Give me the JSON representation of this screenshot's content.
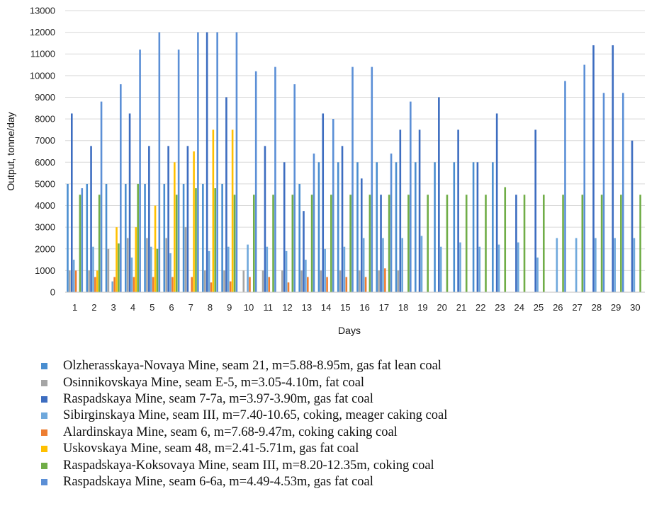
{
  "chart_data": {
    "type": "bar",
    "title": "",
    "xlabel": "Days",
    "ylabel": "Output, tonne/day",
    "ylim": [
      0,
      13000
    ],
    "yticks": [
      0,
      1000,
      2000,
      3000,
      4000,
      5000,
      6000,
      7000,
      8000,
      9000,
      10000,
      11000,
      12000,
      13000
    ],
    "grid": true,
    "legend_position": "bottom",
    "categories": [
      "1",
      "2",
      "3",
      "4",
      "5",
      "6",
      "7",
      "8",
      "9",
      "10",
      "11",
      "12",
      "13",
      "14",
      "15",
      "16",
      "17",
      "18",
      "19",
      "20",
      "21",
      "22",
      "23",
      "24",
      "25",
      "26",
      "27",
      "28",
      "29",
      "30"
    ],
    "series": [
      {
        "name": "Olzherasskaya-Novaya Mine, seam 21, m=5.88-8.95m, gas fat lean coal",
        "color": "#4a8ed0",
        "values": [
          5000,
          5000,
          5000,
          5000,
          5000,
          5000,
          5000,
          5000,
          5000,
          0,
          0,
          0,
          5000,
          6000,
          6000,
          6000,
          6000,
          6000,
          6000,
          6000,
          6000,
          6000,
          6000,
          0,
          0,
          0,
          0,
          0,
          0,
          0
        ]
      },
      {
        "name": "Osinnikovskaya Mine, seam E-5, m=3.05-4.10m, fat coal",
        "color": "#a5a5a5",
        "values": [
          1000,
          1000,
          2000,
          2500,
          2500,
          2500,
          3000,
          1000,
          1000,
          1000,
          1000,
          1000,
          1000,
          1000,
          1000,
          1000,
          1000,
          1000,
          0,
          0,
          0,
          0,
          0,
          0,
          0,
          0,
          0,
          0,
          0,
          0
        ]
      },
      {
        "name": "Raspadskaya Mine, seam 7-7a, m=3.97-3.90m, gas fat coal",
        "color": "#3d6dc0",
        "values": [
          8250,
          6750,
          0,
          8250,
          6750,
          6750,
          6750,
          12000,
          9000,
          0,
          6750,
          6000,
          3750,
          8250,
          6750,
          5250,
          4500,
          7500,
          7500,
          9000,
          7500,
          6000,
          8250,
          4500,
          7500,
          0,
          0,
          11400,
          11400,
          7000
        ]
      },
      {
        "name": "Sibirginskaya Mine, seam III, m=7.40-10.65, coking, meager caking coal",
        "color": "#6fa8dc",
        "values": [
          1500,
          2100,
          500,
          1600,
          2100,
          1800,
          0,
          1900,
          2100,
          2200,
          2100,
          1900,
          1500,
          2000,
          2100,
          2500,
          2500,
          2500,
          2600,
          2100,
          2300,
          2100,
          2200,
          2300,
          1600,
          2500,
          2500,
          2500,
          2500,
          2500
        ]
      },
      {
        "name": "Alardinskaya Mine, seam 6, m=7.68-9.47m, coking caking coal",
        "color": "#ed7d31",
        "values": [
          1000,
          700,
          700,
          700,
          700,
          700,
          700,
          450,
          500,
          700,
          700,
          450,
          700,
          700,
          700,
          700,
          1100,
          0,
          0,
          0,
          0,
          0,
          0,
          0,
          0,
          0,
          0,
          0,
          0,
          0
        ]
      },
      {
        "name": "Uskovskaya Mine, seam 48, m=2.41-5.71m, gas fat coal",
        "color": "#ffc000",
        "values": [
          0,
          1000,
          3000,
          3000,
          4000,
          6000,
          6500,
          7500,
          7500,
          0,
          0,
          0,
          0,
          0,
          0,
          0,
          0,
          0,
          0,
          0,
          0,
          0,
          0,
          0,
          0,
          0,
          0,
          0,
          0,
          0
        ]
      },
      {
        "name": "Raspadskaya-Koksovaya Mine, seam III, m=8.20-12.35m, coking coal",
        "color": "#70ad47",
        "values": [
          4500,
          4500,
          2250,
          5000,
          2000,
          4500,
          4800,
          4800,
          4500,
          4500,
          4500,
          4500,
          4500,
          4500,
          4500,
          4500,
          4500,
          4500,
          4500,
          4500,
          4500,
          4500,
          4850,
          4500,
          4500,
          4500,
          4500,
          4500,
          4500,
          4500
        ]
      },
      {
        "name": "Raspadskaya Mine, seam 6-6a, m=4.49-4.53m, gas fat coal",
        "color": "#5b8fd6",
        "values": [
          4800,
          8800,
          9600,
          11200,
          12000,
          11200,
          12000,
          12000,
          12000,
          10200,
          10400,
          9600,
          6400,
          8000,
          10400,
          10400,
          6400,
          8800,
          0,
          0,
          0,
          0,
          0,
          0,
          0,
          9750,
          10500,
          9200,
          9200,
          0
        ]
      }
    ]
  }
}
